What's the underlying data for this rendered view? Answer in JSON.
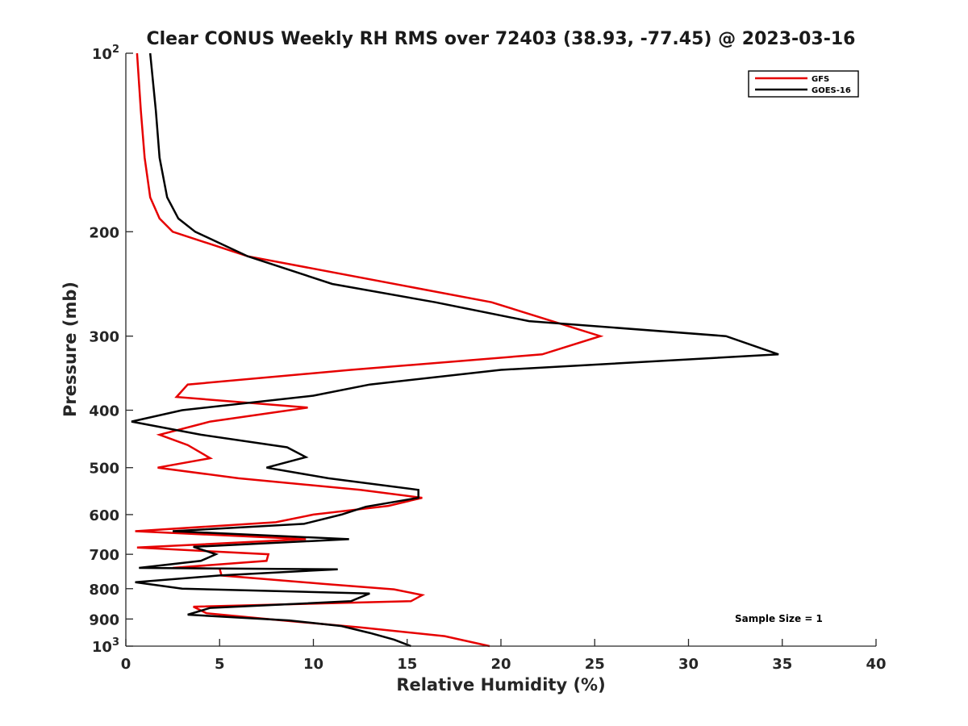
{
  "chart_data": {
    "type": "line",
    "title": "Clear CONUS Weekly RH RMS over 72403 (38.93, -77.45) @ 2023-03-16",
    "xlabel": "Relative Humidity (%)",
    "ylabel": "Pressure (mb)",
    "xlim": [
      0,
      40
    ],
    "ylim": [
      100,
      1000
    ],
    "y_scale": "log",
    "y_reversed": true,
    "grid": false,
    "legend_position": "top-right",
    "x_ticks": [
      0,
      5,
      10,
      15,
      20,
      25,
      30,
      35,
      40
    ],
    "x_tick_labels": [
      "0",
      "5",
      "10",
      "15",
      "20",
      "25",
      "30",
      "35",
      "40"
    ],
    "y_ticks": [
      {
        "value": 100,
        "base": "10",
        "exp": "2"
      },
      {
        "value": 200,
        "base": "200",
        "exp": ""
      },
      {
        "value": 300,
        "base": "300",
        "exp": ""
      },
      {
        "value": 400,
        "base": "400",
        "exp": ""
      },
      {
        "value": 500,
        "base": "500",
        "exp": ""
      },
      {
        "value": 600,
        "base": "600",
        "exp": ""
      },
      {
        "value": 700,
        "base": "700",
        "exp": ""
      },
      {
        "value": 800,
        "base": "800",
        "exp": ""
      },
      {
        "value": 900,
        "base": "900",
        "exp": ""
      },
      {
        "value": 1000,
        "base": "10",
        "exp": "3"
      }
    ],
    "annotation": "Sample Size = 1",
    "series": [
      {
        "name": "GFS",
        "color": "#e60000",
        "points": [
          [
            0.6,
            100
          ],
          [
            0.8,
            125
          ],
          [
            1.0,
            150
          ],
          [
            1.3,
            175
          ],
          [
            1.8,
            190
          ],
          [
            2.5,
            200
          ],
          [
            6.5,
            220
          ],
          [
            19.5,
            263
          ],
          [
            25.3,
            300
          ],
          [
            22.2,
            322
          ],
          [
            12.0,
            342
          ],
          [
            3.3,
            362
          ],
          [
            2.7,
            380
          ],
          [
            9.7,
            396
          ],
          [
            4.5,
            418
          ],
          [
            1.8,
            440
          ],
          [
            3.3,
            458
          ],
          [
            4.5,
            482
          ],
          [
            1.7,
            500
          ],
          [
            6.0,
            521
          ],
          [
            12.5,
            545
          ],
          [
            15.8,
            562
          ],
          [
            14.0,
            580
          ],
          [
            10.0,
            600
          ],
          [
            8.0,
            618
          ],
          [
            0.5,
            640
          ],
          [
            9.6,
            660
          ],
          [
            0.6,
            682
          ],
          [
            7.6,
            700
          ],
          [
            7.5,
            718
          ],
          [
            2.5,
            738
          ],
          [
            5.0,
            740
          ],
          [
            5.1,
            760
          ],
          [
            10.5,
            785
          ],
          [
            14.3,
            802
          ],
          [
            15.8,
            820
          ],
          [
            15.2,
            840
          ],
          [
            3.6,
            858
          ],
          [
            4.3,
            880
          ],
          [
            8.0,
            903
          ],
          [
            12.5,
            930
          ],
          [
            17.0,
            962
          ],
          [
            19.4,
            1000
          ]
        ]
      },
      {
        "name": "GOES-16",
        "color": "#000000",
        "points": [
          [
            1.3,
            100
          ],
          [
            1.6,
            125
          ],
          [
            1.8,
            150
          ],
          [
            2.2,
            175
          ],
          [
            2.8,
            190
          ],
          [
            3.7,
            200
          ],
          [
            6.5,
            220
          ],
          [
            11.0,
            245
          ],
          [
            16.5,
            263
          ],
          [
            21.5,
            283
          ],
          [
            32.0,
            300
          ],
          [
            34.8,
            322
          ],
          [
            20.0,
            342
          ],
          [
            13.0,
            362
          ],
          [
            10.0,
            378
          ],
          [
            3.0,
            400
          ],
          [
            0.3,
            418
          ],
          [
            4.0,
            440
          ],
          [
            8.6,
            462
          ],
          [
            9.6,
            480
          ],
          [
            7.5,
            500
          ],
          [
            10.8,
            521
          ],
          [
            15.6,
            545
          ],
          [
            15.6,
            562
          ],
          [
            12.8,
            582
          ],
          [
            11.5,
            600
          ],
          [
            9.5,
            622
          ],
          [
            2.5,
            640
          ],
          [
            11.9,
            660
          ],
          [
            3.6,
            680
          ],
          [
            4.8,
            700
          ],
          [
            4.0,
            718
          ],
          [
            0.7,
            738
          ],
          [
            11.3,
            742
          ],
          [
            5.0,
            760
          ],
          [
            0.5,
            780
          ],
          [
            3.0,
            800
          ],
          [
            13.0,
            815
          ],
          [
            12.0,
            840
          ],
          [
            4.5,
            862
          ],
          [
            3.3,
            885
          ],
          [
            8.7,
            905
          ],
          [
            11.5,
            925
          ],
          [
            13.0,
            950
          ],
          [
            14.3,
            975
          ],
          [
            15.2,
            1000
          ]
        ]
      }
    ]
  }
}
